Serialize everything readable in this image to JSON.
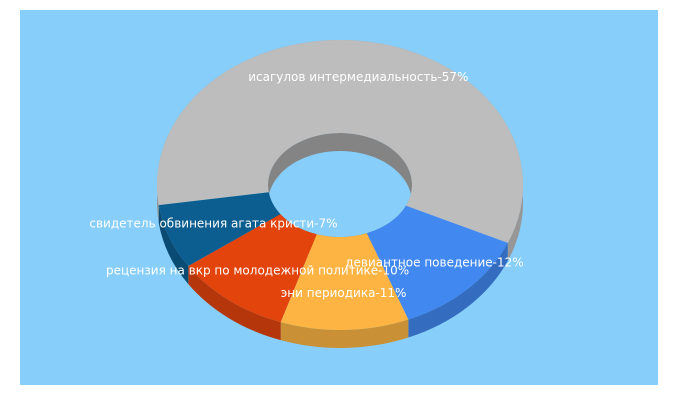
{
  "chart_data": {
    "type": "pie",
    "donut": true,
    "categories": [
      "исагулов интермедиальность-57%",
      "девиантное поведение-12%",
      "эни периодика-11%",
      "рецензия на вкр по молодежной политике-10%",
      "свидетель обвинения агата кристи-7%"
    ],
    "values": [
      57,
      12,
      11,
      10,
      7
    ],
    "colors": [
      "#bdbdbd",
      "#4188f0",
      "#fdb443",
      "#e2440c",
      "#0c5e90"
    ]
  }
}
